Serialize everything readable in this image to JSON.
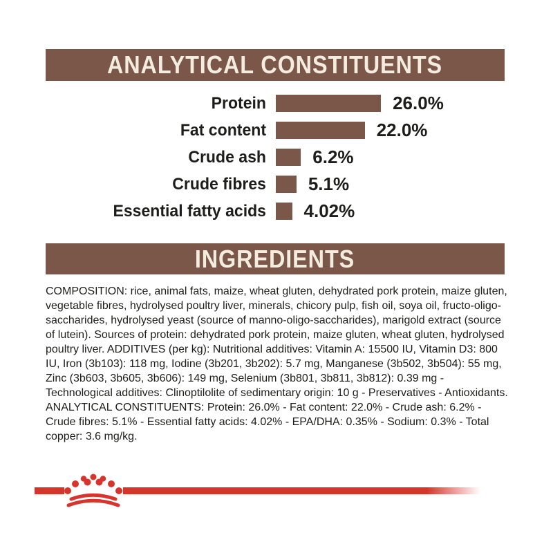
{
  "colors": {
    "brown": "#7b5749",
    "cream": "#f4ecdf",
    "red": "#d6342c",
    "text": "#1d1d1b",
    "background": "#ffffff"
  },
  "sections": {
    "analytical": {
      "title": "ANALYTICAL CONSTITUENTS"
    },
    "ingredients": {
      "title": "INGREDIENTS",
      "body": "COMPOSITION: rice, animal fats, maize, wheat gluten, dehydrated pork protein, maize gluten, vegetable fibres, hydrolysed poultry liver, minerals, chicory pulp, fish oil, soya oil, fructo-oligo-saccharides, hydrolysed yeast (source of manno-oligo-saccharides), marigold extract (source of lutein). Sources of protein: dehydrated pork protein, maize gluten, wheat gluten, hydrolysed poultry liver. ADDITIVES (per kg): Nutritional additives: Vitamin A: 15500 IU, Vitamin D3: 800 IU, Iron (3b103): 118 mg, Iodine (3b201, 3b202): 5.7 mg, Manganese (3b502, 3b504): 55 mg, Zinc (3b603, 3b605, 3b606): 149 mg, Selenium (3b801, 3b811, 3b812): 0.39 mg - Technological additives: Clinoptilolite of sedimentary origin: 10 g - Preservatives - Antioxidants. ANALYTICAL CONSTITUENTS: Protein: 26.0% - Fat content: 22.0% - Crude ash: 6.2% - Crude fibres: 5.1% - Essential fatty acids: 4.02% - EPA/DHA: 0.35% - Sodium: 0.3% - Total copper: 3.6 mg/kg."
    }
  },
  "chart_data": {
    "type": "bar",
    "orientation": "horizontal",
    "title": "ANALYTICAL CONSTITUENTS",
    "categories": [
      "Protein",
      "Fat content",
      "Crude ash",
      "Crude fibres",
      "Essential fatty acids"
    ],
    "values": [
      26.0,
      22.0,
      6.2,
      5.1,
      4.02
    ],
    "value_labels": [
      "26.0%",
      "22.0%",
      "6.2%",
      "5.1%",
      "4.02%"
    ],
    "unit": "%",
    "xlim": [
      0,
      30
    ],
    "bar_color": "#7b5749",
    "grid": false,
    "legend": false,
    "value_label_position": "right-of-bar"
  },
  "footer": {
    "logo": "royal-canin-crown-logo",
    "accent_color": "#d6342c"
  }
}
